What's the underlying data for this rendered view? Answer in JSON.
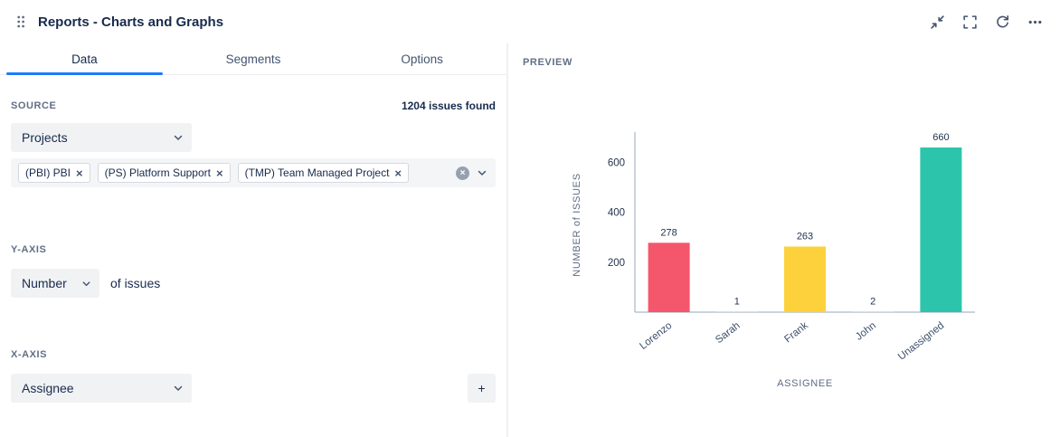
{
  "header": {
    "title": "Reports - Charts and Graphs"
  },
  "tabs": {
    "data": "Data",
    "segments": "Segments",
    "options": "Options"
  },
  "source": {
    "label": "SOURCE",
    "issues_found": "1204 issues found",
    "project_select": "Projects",
    "chips": [
      "(PBI) PBI",
      "(PS) Platform Support",
      "(TMP) Team Managed Project"
    ]
  },
  "y_axis": {
    "label": "Y-AXIS",
    "select": "Number",
    "suffix": "of issues"
  },
  "x_axis": {
    "label": "X-AXIS",
    "select": "Assignee",
    "add_label": "+"
  },
  "preview": {
    "label": "PREVIEW"
  },
  "icons": {
    "chip_remove": "×",
    "clear_all": "×"
  },
  "chart_data": {
    "type": "bar",
    "categories": [
      "Lorenzo",
      "Sarah",
      "Frank",
      "John",
      "Unassigned"
    ],
    "values": [
      278,
      1,
      263,
      2,
      660
    ],
    "bar_colors": [
      "#f4566c",
      "#c4cad2",
      "#fcd13c",
      "#c4cad2",
      "#2cc5ab"
    ],
    "title": "",
    "xlabel": "ASSIGNEE",
    "ylabel": "NUMBER of ISSUES",
    "yticks": [
      200,
      400,
      600
    ],
    "ylim": [
      0,
      700
    ],
    "legend": false,
    "grid": false
  }
}
